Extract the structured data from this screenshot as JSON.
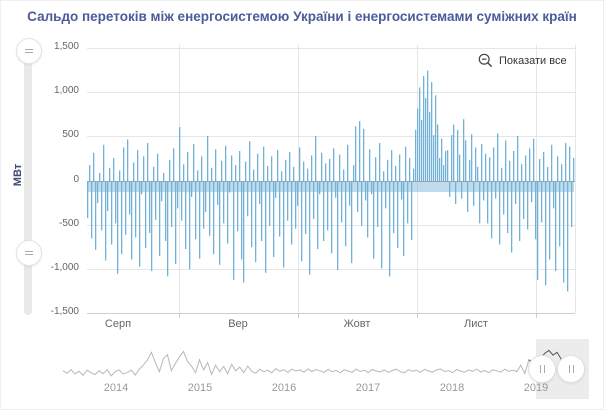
{
  "title": "Сальдо перетоків між енергосистемою України і енергосистемами суміжних країн",
  "controls": {
    "show_all": {
      "label": "Показати все",
      "icon": "zoom-out-icon"
    }
  },
  "colors": {
    "accent_bar": "#72b1d8",
    "title": "#4c5b99",
    "axis_label": "#666666",
    "year_label": "#9a9a9a",
    "nav_line": "#b8b8b8",
    "nav_line_selected": "#555555",
    "zero_line": "#9f9f9f",
    "grid": "#e6e6e6"
  },
  "chart_data": {
    "type": "bar",
    "title": "Сальдо перетоків між енергосистемою України і енергосистемами суміжних країн",
    "ylabel": "МВт",
    "ylim": [
      -1500,
      1500
    ],
    "grid": true,
    "yticks": [
      "1,500",
      "1,000",
      "500",
      "0",
      "-500",
      "-1,000",
      "-1,500"
    ],
    "xticks": [
      "Серп",
      "Вер",
      "Жовт",
      "Лист"
    ],
    "values": [
      -420,
      180,
      -650,
      320,
      -780,
      -250,
      90,
      -560,
      410,
      -900,
      -340,
      150,
      -720,
      260,
      -480,
      -1050,
      120,
      -830,
      380,
      -610,
      470,
      -380,
      -890,
      210,
      -640,
      350,
      -970,
      -150,
      280,
      -760,
      430,
      -590,
      -1020,
      160,
      -440,
      310,
      -850,
      -230,
      90,
      -680,
      -1080,
      240,
      -520,
      370,
      -940,
      -310,
      610,
      -450,
      190,
      -770,
      330,
      -1000,
      -180,
      420,
      -660,
      120,
      -880,
      280,
      -540,
      -350,
      510,
      -620,
      150,
      -830,
      360,
      -270,
      -950,
      230,
      -480,
      400,
      -710,
      -130,
      290,
      -1120,
      180,
      -570,
      340,
      -890,
      -1150,
      220,
      -400,
      450,
      -750,
      130,
      -920,
      310,
      -260,
      -680,
      390,
      -1040,
      170,
      -510,
      280,
      -860,
      -190,
      350,
      -630,
      110,
      -980,
      240,
      -450,
      330,
      -720,
      160,
      -540,
      -280,
      380,
      -910,
      220,
      -600,
      140,
      -1060,
      290,
      -430,
      510,
      -770,
      -150,
      320,
      -680,
      200,
      -560,
      250,
      -820,
      370,
      -190,
      -1010,
      300,
      -470,
      130,
      -740,
      410,
      -280,
      -930,
      180,
      620,
      -350,
      680,
      -510,
      590,
      -220,
      -640,
      360,
      -150,
      -880,
      270,
      -520,
      430,
      -990,
      110,
      -310,
      240,
      -1080,
      350,
      -590,
      170,
      -760,
      300,
      -210,
      -850,
      390,
      -480,
      260,
      -670,
      140,
      580,
      820,
      1060,
      690,
      1190,
      940,
      1250,
      780,
      1120,
      520,
      970,
      640,
      260,
      480,
      180,
      340,
      350,
      -180,
      520,
      640,
      -260,
      580,
      300,
      -200,
      700,
      460,
      -350,
      240,
      530,
      -280,
      380,
      160,
      -480,
      420,
      -220,
      310,
      -480,
      270,
      -650,
      380,
      -200,
      540,
      -720,
      150,
      -380,
      460,
      -590,
      230,
      -810,
      340,
      -260,
      510,
      -680,
      190,
      -430,
      290,
      -550,
      370,
      -240,
      480,
      -660,
      -1120,
      250,
      -470,
      330,
      -1180,
      160,
      -890,
      410,
      -310,
      -1020,
      280,
      -740,
      190,
      -1150,
      430,
      -1250,
      390,
      -520,
      260
    ],
    "navigator": {
      "years": [
        "2014",
        "2015",
        "2016",
        "2017",
        "2018",
        "2019"
      ],
      "selected_range": "Серп–Груд 2019",
      "values": [
        -150,
        -280,
        -90,
        -320,
        -180,
        -400,
        -120,
        -260,
        -350,
        -150,
        -300,
        -80,
        -420,
        -200,
        -100,
        -330,
        -250,
        -120,
        -380,
        -60,
        150,
        420,
        850,
        300,
        -200,
        500,
        720,
        -150,
        250,
        600,
        900,
        350,
        100,
        -250,
        450,
        -100,
        300,
        -350,
        150,
        -200,
        80,
        -300,
        200,
        -150,
        50,
        -250,
        100,
        -180,
        -280,
        -60,
        -200,
        -120,
        -260,
        -40,
        -180,
        -90,
        -240,
        -60,
        -160,
        -110,
        -220,
        -50,
        -190,
        -80,
        -150,
        -240,
        -70,
        -200,
        -130,
        -260,
        -90,
        -170,
        -230,
        -60,
        -190,
        -110,
        -250,
        -80,
        -160,
        -210,
        -100,
        -230,
        -140,
        -60,
        -200,
        -260,
        -90,
        -180,
        -120,
        -240,
        -70,
        -160,
        -220,
        -110,
        -50,
        -190,
        -140,
        -250,
        -80,
        -170,
        -230,
        -100,
        -190,
        -60,
        -210,
        -130,
        -260,
        -90,
        -150,
        -220,
        -70,
        -180,
        -120,
        -200,
        150,
        -300,
        450,
        250,
        300,
        550,
        800,
        950,
        700,
        850,
        500,
        -200,
        -300,
        -150
      ]
    }
  }
}
